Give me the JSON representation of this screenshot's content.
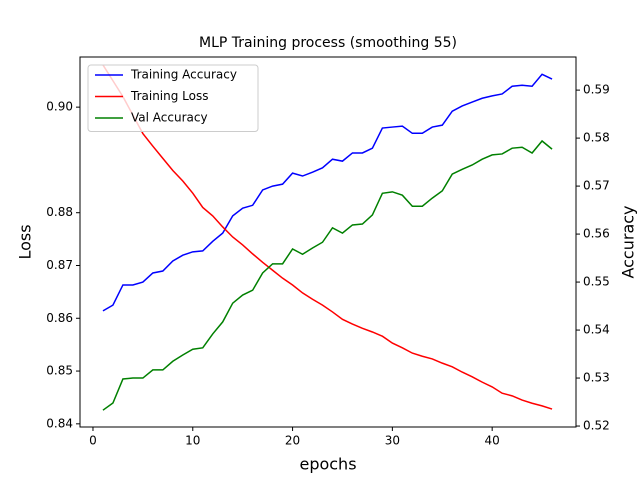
{
  "chart_data": {
    "type": "line",
    "title": "MLP Training process (smoothing 55)",
    "x_label": "epochs",
    "y_label": "Loss",
    "y2_label": "Accuracy",
    "x": [
      1,
      2,
      3,
      4,
      5,
      6,
      7,
      8,
      9,
      10,
      11,
      12,
      13,
      14,
      15,
      16,
      17,
      18,
      19,
      20,
      21,
      22,
      23,
      24,
      25,
      26,
      27,
      28,
      29,
      30,
      31,
      32,
      33,
      34,
      35,
      36,
      37,
      38,
      39,
      40,
      41,
      42,
      43,
      44,
      45,
      46
    ],
    "series": [
      {
        "name": "Training Accuracy",
        "color": "#0000ff",
        "axis": "y2",
        "values": [
          0.544,
          0.5452,
          0.5494,
          0.5494,
          0.55,
          0.5519,
          0.5523,
          0.5544,
          0.5556,
          0.5563,
          0.5565,
          0.5585,
          0.5602,
          0.5638,
          0.5654,
          0.566,
          0.5692,
          0.57,
          0.5704,
          0.5727,
          0.5721,
          0.5729,
          0.5738,
          0.5756,
          0.5752,
          0.5769,
          0.5769,
          0.5779,
          0.5821,
          0.5823,
          0.5825,
          0.581,
          0.581,
          0.5823,
          0.5827,
          0.5856,
          0.5867,
          0.5875,
          0.5883,
          0.5888,
          0.5892,
          0.5908,
          0.591,
          0.5908,
          0.5933,
          0.5923
        ]
      },
      {
        "name": "Training Loss",
        "color": "#ff0000",
        "values": [
          0.908,
          0.905,
          0.902,
          0.8985,
          0.895,
          0.8926,
          0.8903,
          0.888,
          0.886,
          0.8837,
          0.881,
          0.8794,
          0.8773,
          0.8754,
          0.8739,
          0.8722,
          0.8706,
          0.8691,
          0.8676,
          0.8663,
          0.8648,
          0.8636,
          0.8625,
          0.8612,
          0.8598,
          0.8589,
          0.8581,
          0.8574,
          0.8566,
          0.8553,
          0.8544,
          0.8534,
          0.8528,
          0.8523,
          0.8515,
          0.8508,
          0.8498,
          0.8489,
          0.8479,
          0.847,
          0.8458,
          0.8453,
          0.8445,
          0.8439,
          0.8434,
          0.8428
        ]
      },
      {
        "name": "Val Accuracy",
        "color": "#008000",
        "axis": "y2",
        "values": [
          0.5233,
          0.5248,
          0.5298,
          0.53,
          0.53,
          0.5317,
          0.5317,
          0.5335,
          0.5348,
          0.536,
          0.5363,
          0.5392,
          0.5417,
          0.5456,
          0.5473,
          0.5483,
          0.5519,
          0.5538,
          0.5538,
          0.5569,
          0.5558,
          0.5571,
          0.5583,
          0.5613,
          0.5602,
          0.5619,
          0.5621,
          0.564,
          0.5685,
          0.5688,
          0.5681,
          0.5658,
          0.5658,
          0.5675,
          0.569,
          0.5725,
          0.5735,
          0.5744,
          0.5756,
          0.5765,
          0.5767,
          0.5779,
          0.5781,
          0.5769,
          0.5794,
          0.5777
        ]
      }
    ],
    "xlim": [
      -1.3,
      48.4
    ],
    "xticks": [
      0,
      10,
      20,
      30,
      40
    ],
    "ylim": [
      0.8394,
      0.9095
    ],
    "yticks": [
      0.84,
      0.85,
      0.86,
      0.87,
      0.88,
      {
        "value": 0.9,
        "label": "0.90"
      }
    ],
    "y2lim": [
      0.5198,
      0.5969
    ],
    "y2ticks": [
      0.52,
      0.53,
      0.54,
      0.55,
      0.56,
      0.57,
      0.58,
      0.59
    ],
    "legend": "upper left",
    "grid": false
  }
}
